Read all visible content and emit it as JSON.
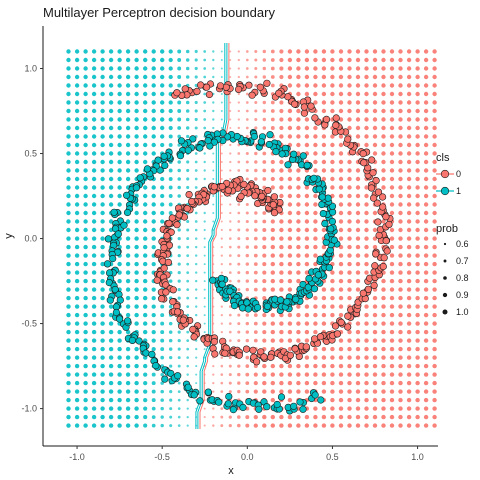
{
  "chart_data": {
    "type": "scatter",
    "title": "Multilayer Perceptron decision boundary",
    "xlabel": "x",
    "ylabel": "y",
    "xlim": [
      -1.2,
      1.12
    ],
    "ylim": [
      -1.22,
      1.25
    ],
    "x_ticks": [
      -1.0,
      -0.5,
      0.0,
      0.5,
      1.0
    ],
    "x_tick_labels": [
      "-1.0",
      "-0.5",
      "0.0",
      "0.5",
      "1.0"
    ],
    "y_ticks": [
      -1.0,
      -0.5,
      0.0,
      0.5,
      1.0
    ],
    "y_tick_labels": [
      "-1.0",
      "-0.5",
      "0.0",
      "0.5",
      "1.0"
    ],
    "grid": false,
    "colors": {
      "class0": "#F8766D",
      "class1": "#00BFC4",
      "outline": "#1a1a1a"
    },
    "background_grid": {
      "x_range": [
        -1.05,
        1.1
      ],
      "y_range": [
        -1.1,
        1.12
      ],
      "step": 0.05
    },
    "decision_boundary": {
      "x": [
        -0.12,
        -0.12,
        -0.135,
        -0.135,
        -0.17,
        -0.17,
        -0.195,
        -0.195,
        -0.215,
        -0.215,
        -0.245,
        -0.245,
        -0.265,
        -0.265,
        -0.29,
        -0.29
      ],
      "y": [
        1.15,
        0.7,
        0.62,
        0.62,
        0.58,
        0.12,
        0.05,
        0.02,
        -0.02,
        -0.62,
        -0.7,
        -0.72,
        -0.78,
        -0.95,
        -1.02,
        -1.12
      ]
    },
    "spirals": [
      {
        "name": "0",
        "center": [
          0.0,
          -0.05
        ],
        "radius_start": 0.27,
        "radius_end": 0.98,
        "angle_start_deg": 50,
        "angle_end_deg": 475,
        "points": 380
      },
      {
        "name": "1",
        "center": [
          0.0,
          -0.05
        ],
        "radius_start": 0.27,
        "radius_end": 0.98,
        "angle_start_deg": 230,
        "angle_end_deg": 655,
        "points": 380
      }
    ],
    "legend": {
      "position": "right",
      "cls_title": "cls",
      "cls_items": [
        "0",
        "1"
      ],
      "prob_title": "prob",
      "prob_items": [
        "0.6",
        "0.7",
        "0.8",
        "0.9",
        "1.0"
      ]
    }
  }
}
